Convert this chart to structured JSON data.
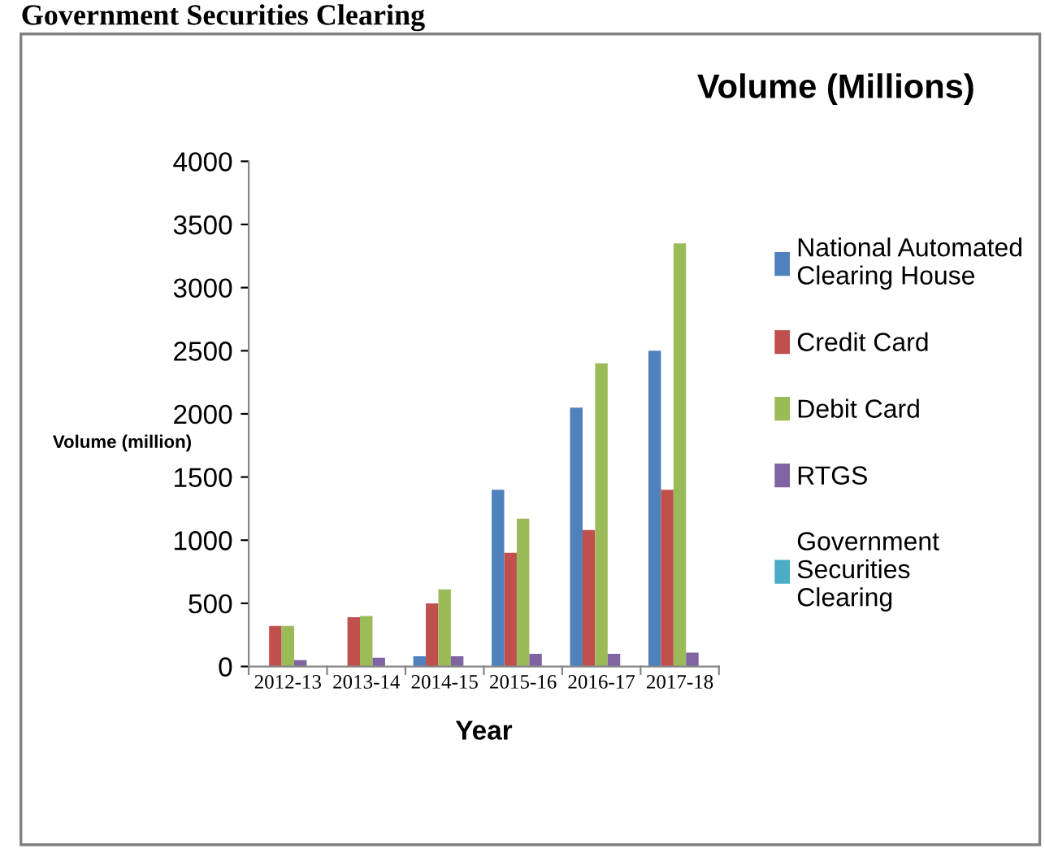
{
  "chart_data": {
    "type": "bar",
    "title": "Volume (Millions)",
    "xlabel": "Year",
    "ylabel": "Volume (million)",
    "annotations": [
      "Government Securities Clearing"
    ],
    "categories": [
      "2012-13",
      "2013-14",
      "2014-15",
      "2015-16",
      "2016-17",
      "2017-18"
    ],
    "series": [
      {
        "name": "National Automated Clearing House",
        "color": "#4f81bd",
        "values": [
          null,
          null,
          80,
          1400,
          2050,
          2500
        ]
      },
      {
        "name": "Credit Card",
        "color": "#c0504d",
        "values": [
          320,
          390,
          500,
          900,
          1080,
          1400
        ]
      },
      {
        "name": "Debit Card",
        "color": "#9bbb59",
        "values": [
          320,
          400,
          610,
          1170,
          2400,
          3350
        ]
      },
      {
        "name": "RTGS",
        "color": "#8064a2",
        "values": [
          50,
          70,
          80,
          100,
          100,
          110
        ]
      },
      {
        "name": "Government Securities Clearing",
        "color": "#4bacc6",
        "values": [
          null,
          null,
          null,
          null,
          null,
          null
        ]
      }
    ],
    "ylim": [
      0,
      4000
    ],
    "yticks": [
      0,
      500,
      1000,
      1500,
      2000,
      2500,
      3000,
      3500,
      4000
    ],
    "grid": false,
    "legend": "right"
  }
}
